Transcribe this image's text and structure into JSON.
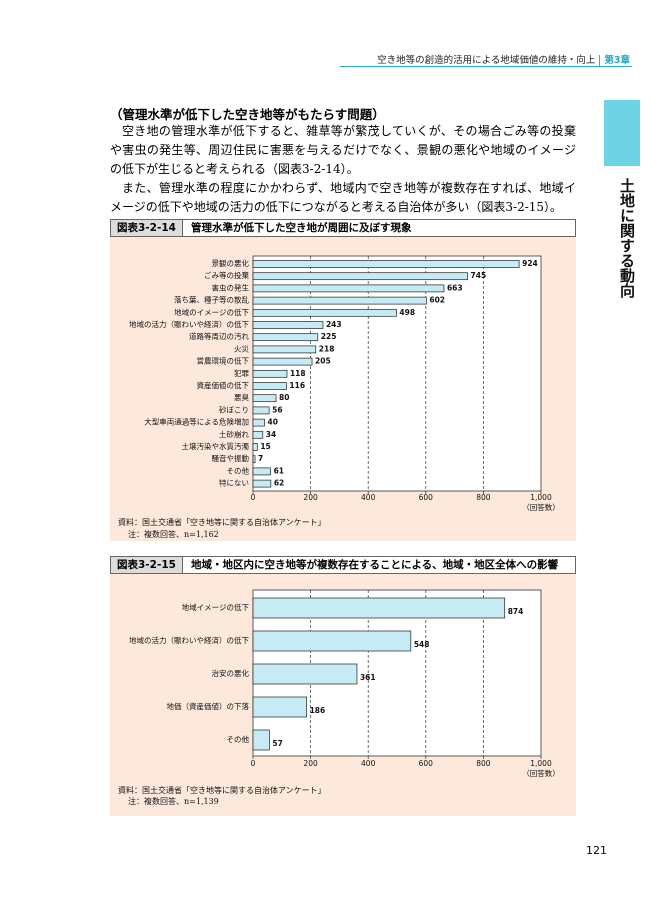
{
  "header": {
    "title": "空き地等の創造的活用による地域価値の維持・向上",
    "chapter": "第3章"
  },
  "side_tab": "土地に関する動向",
  "section_heading": "（管理水準が低下した空き地等がもたらす問題）",
  "paragraphs": [
    "空き地の管理水準が低下すると、雑草等が繁茂していくが、その場合ごみ等の投棄や害虫の発生等、周辺住民に害悪を与えるだけでなく、景観の悪化や地域のイメージの低下が生じると考えられる（図表3-2-14）。",
    "また、管理水準の程度にかかわらず、地域内で空き地等が複数存在すれば、地域イメージの低下や地域の活力の低下につながると考える自治体が多い（図表3-2-15）。"
  ],
  "chart_data": [
    {
      "type": "bar",
      "orientation": "horizontal",
      "label": "図表3-2-14",
      "title": "管理水準が低下した空き地が周囲に及ぼす現象",
      "categories": [
        "景観の悪化",
        "ごみ等の投棄",
        "害虫の発生",
        "落ち葉、種子等の散乱",
        "地域のイメージの低下",
        "地域の活力（賑わいや経済）の低下",
        "道路等周辺の汚れ",
        "火災",
        "営農環境の低下",
        "犯罪",
        "資産価値の低下",
        "悪臭",
        "砂ぼこり",
        "大型車両通過等による危険増加",
        "土砂崩れ",
        "土壌汚染や水質汚濁",
        "騒音や振動",
        "その他",
        "特にない"
      ],
      "values": [
        924,
        745,
        663,
        602,
        498,
        243,
        225,
        218,
        205,
        118,
        116,
        80,
        56,
        40,
        34,
        15,
        7,
        61,
        62
      ],
      "color": "#c6ebf5",
      "xlim": [
        0,
        1000
      ],
      "xticks": [
        0,
        200,
        400,
        600,
        800,
        {
          "value": 1000,
          "label": "1,000"
        }
      ],
      "x_unit": "（回答数）",
      "grid": true,
      "notes": [
        "資料：国土交通省「空き地等に関する自治体アンケート」",
        "注：複数回答、n=1,162"
      ]
    },
    {
      "type": "bar",
      "orientation": "horizontal",
      "label": "図表3-2-15",
      "title": "地域・地区内に空き地等が複数存在することによる、地域・地区全体への影響",
      "categories": [
        "地域イメージの低下",
        "地域の活力（賑わいや経済）の低下",
        "治安の悪化",
        "地価（資産価値）の下落",
        "その他"
      ],
      "values": [
        874,
        548,
        361,
        186,
        57
      ],
      "color": "#c6ebf5",
      "xlim": [
        0,
        1000
      ],
      "xticks": [
        0,
        200,
        400,
        600,
        800,
        {
          "value": 1000,
          "label": "1,000"
        }
      ],
      "x_unit": "（回答数）",
      "grid": true,
      "notes": [
        "資料：国土交通省「空き地等に関する自治体アンケート」",
        "注：複数回答、n=1,139"
      ]
    }
  ],
  "page_number": "121"
}
